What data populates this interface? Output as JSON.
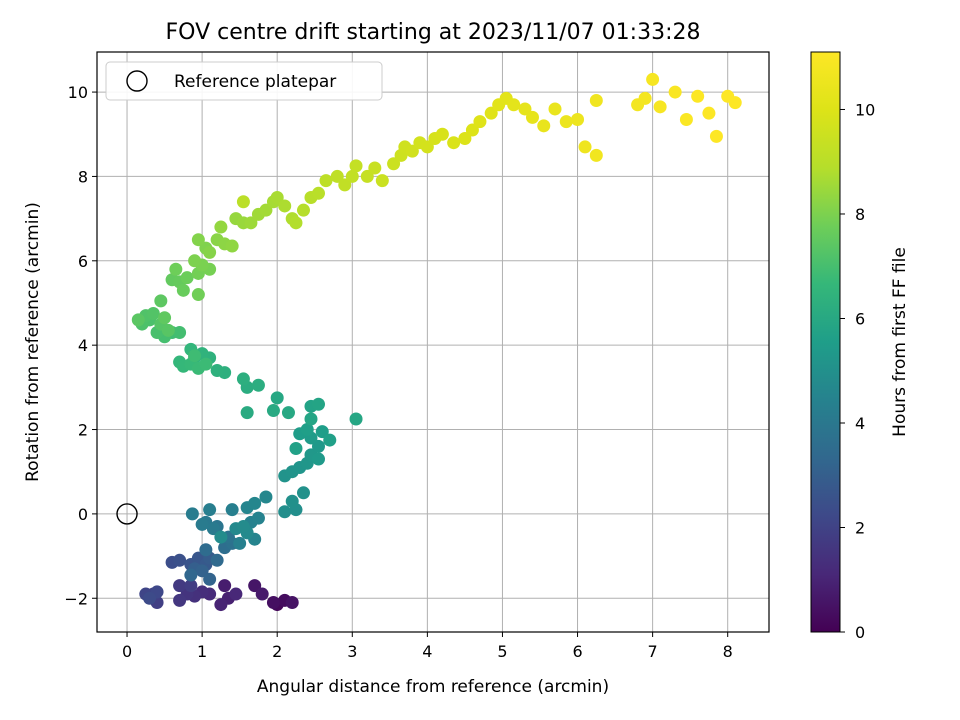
{
  "chart_data": {
    "type": "scatter",
    "title": "FOV centre drift starting at 2023/11/07 01:33:28",
    "xlabel": "Angular distance from reference (arcmin)",
    "ylabel": "Rotation from reference (arcmin)",
    "xlim": [
      -0.4,
      8.55
    ],
    "ylim": [
      -2.8,
      10.95
    ],
    "xticks": [
      0,
      1,
      2,
      3,
      4,
      5,
      6,
      7,
      8
    ],
    "yticks": [
      -2,
      0,
      2,
      4,
      6,
      8,
      10
    ],
    "grid": true,
    "legend": {
      "position": "top-left",
      "label": "Reference platepar"
    },
    "reference_point": {
      "x": 0,
      "y": 0
    },
    "colorbar": {
      "label": "Hours from first FF file",
      "range": [
        0,
        11.1
      ],
      "ticks": [
        0,
        2,
        4,
        6,
        8,
        10
      ],
      "colormap": "viridis"
    },
    "series": [
      {
        "points": [
          [
            2.0,
            -2.15,
            0.2
          ],
          [
            2.1,
            -2.05,
            0.3
          ],
          [
            1.95,
            -2.1,
            0.4
          ],
          [
            2.2,
            -2.1,
            0.5
          ],
          [
            1.7,
            -1.7,
            0.6
          ],
          [
            1.8,
            -1.9,
            0.7
          ],
          [
            1.3,
            -1.7,
            0.8
          ],
          [
            1.35,
            -2.0,
            0.9
          ],
          [
            1.25,
            -2.15,
            1.0
          ],
          [
            1.45,
            -1.9,
            1.1
          ],
          [
            1.1,
            -1.9,
            1.2
          ],
          [
            1.0,
            -1.85,
            1.3
          ],
          [
            0.9,
            -1.95,
            1.4
          ],
          [
            0.8,
            -1.9,
            1.5
          ],
          [
            0.7,
            -2.05,
            1.6
          ],
          [
            0.7,
            -1.7,
            1.7
          ],
          [
            0.85,
            -1.7,
            1.8
          ],
          [
            0.4,
            -2.1,
            1.9
          ],
          [
            0.35,
            -1.9,
            2.0
          ],
          [
            0.25,
            -1.9,
            2.1
          ],
          [
            0.4,
            -1.85,
            2.2
          ],
          [
            0.3,
            -2.0,
            2.3
          ],
          [
            0.6,
            -1.15,
            2.4
          ],
          [
            0.7,
            -1.1,
            2.5
          ],
          [
            0.85,
            -1.2,
            2.6
          ],
          [
            0.95,
            -1.05,
            2.7
          ],
          [
            1.05,
            -1.2,
            2.8
          ],
          [
            1.1,
            -1.05,
            2.9
          ],
          [
            0.9,
            -1.3,
            3.0
          ],
          [
            1.0,
            -1.35,
            3.1
          ],
          [
            1.1,
            -1.55,
            3.2
          ],
          [
            0.85,
            -1.45,
            3.3
          ],
          [
            1.2,
            -1.1,
            3.4
          ],
          [
            1.05,
            -0.85,
            3.5
          ],
          [
            1.3,
            -0.8,
            3.6
          ],
          [
            1.4,
            -0.7,
            3.7
          ],
          [
            1.35,
            -0.55,
            3.8
          ],
          [
            1.2,
            -0.3,
            3.9
          ],
          [
            1.05,
            -0.2,
            4.0
          ],
          [
            1.15,
            -0.35,
            4.1
          ],
          [
            1.0,
            -0.25,
            4.15
          ],
          [
            0.87,
            0.0,
            4.2
          ],
          [
            1.1,
            0.1,
            4.25
          ],
          [
            1.4,
            0.1,
            4.3
          ],
          [
            1.5,
            -0.7,
            4.35
          ],
          [
            1.65,
            -0.2,
            4.4
          ],
          [
            1.75,
            -0.1,
            4.45
          ],
          [
            1.7,
            -0.6,
            4.5
          ],
          [
            1.6,
            0.15,
            4.55
          ],
          [
            1.7,
            0.25,
            4.6
          ],
          [
            1.85,
            0.4,
            4.65
          ],
          [
            1.45,
            -0.35,
            4.7
          ],
          [
            1.6,
            -0.45,
            4.75
          ],
          [
            1.55,
            -0.3,
            4.8
          ],
          [
            1.25,
            -0.55,
            4.85
          ],
          [
            2.1,
            0.05,
            4.9
          ],
          [
            2.25,
            0.1,
            4.95
          ],
          [
            2.2,
            0.3,
            5.0
          ],
          [
            2.35,
            0.5,
            5.05
          ],
          [
            2.1,
            0.9,
            5.1
          ],
          [
            2.2,
            1.0,
            5.15
          ],
          [
            2.3,
            1.1,
            5.2
          ],
          [
            2.4,
            1.2,
            5.25
          ],
          [
            2.45,
            1.4,
            5.3
          ],
          [
            2.55,
            1.6,
            5.35
          ],
          [
            2.55,
            1.3,
            5.4
          ],
          [
            2.45,
            1.8,
            5.45
          ],
          [
            2.3,
            1.9,
            5.5
          ],
          [
            2.6,
            1.95,
            5.55
          ],
          [
            2.4,
            2.0,
            5.6
          ],
          [
            2.7,
            1.75,
            5.65
          ],
          [
            2.25,
            1.55,
            5.7
          ],
          [
            2.45,
            2.55,
            5.75
          ],
          [
            2.55,
            2.6,
            5.8
          ],
          [
            2.45,
            2.25,
            5.85
          ],
          [
            3.05,
            2.25,
            5.9
          ],
          [
            2.0,
            2.75,
            5.95
          ],
          [
            2.15,
            2.4,
            6.0
          ],
          [
            1.95,
            2.45,
            6.05
          ],
          [
            1.6,
            2.4,
            6.1
          ],
          [
            1.6,
            3.0,
            6.15
          ],
          [
            1.75,
            3.05,
            6.2
          ],
          [
            1.55,
            3.2,
            6.25
          ],
          [
            1.3,
            3.35,
            6.3
          ],
          [
            1.2,
            3.4,
            6.35
          ],
          [
            1.1,
            3.7,
            6.4
          ],
          [
            1.0,
            3.8,
            6.45
          ],
          [
            0.9,
            3.7,
            6.5
          ],
          [
            0.85,
            3.9,
            6.55
          ],
          [
            0.7,
            3.6,
            6.6
          ],
          [
            0.75,
            3.5,
            6.65
          ],
          [
            0.85,
            3.55,
            6.7
          ],
          [
            0.95,
            3.45,
            6.75
          ],
          [
            1.05,
            3.55,
            6.8
          ],
          [
            0.9,
            3.75,
            6.85
          ],
          [
            0.6,
            4.3,
            6.9
          ],
          [
            0.7,
            4.3,
            6.95
          ],
          [
            0.5,
            4.2,
            7.0
          ],
          [
            0.4,
            4.3,
            7.05
          ],
          [
            0.3,
            4.6,
            7.1
          ],
          [
            0.2,
            4.5,
            7.15
          ],
          [
            0.25,
            4.7,
            7.2
          ],
          [
            0.35,
            4.75,
            7.25
          ],
          [
            0.45,
            4.5,
            7.3
          ],
          [
            0.55,
            4.35,
            7.35
          ],
          [
            0.15,
            4.6,
            7.4
          ],
          [
            0.45,
            5.05,
            7.45
          ],
          [
            0.5,
            4.65,
            7.5
          ],
          [
            0.6,
            5.55,
            7.55
          ],
          [
            0.7,
            5.5,
            7.6
          ],
          [
            0.75,
            5.3,
            7.65
          ],
          [
            0.8,
            5.6,
            7.7
          ],
          [
            0.65,
            5.8,
            7.75
          ],
          [
            0.95,
            5.2,
            7.8
          ],
          [
            0.95,
            5.7,
            7.85
          ],
          [
            1.1,
            5.8,
            7.9
          ],
          [
            1.0,
            5.9,
            7.95
          ],
          [
            0.9,
            6.0,
            8.0
          ],
          [
            1.05,
            6.3,
            8.05
          ],
          [
            0.95,
            6.5,
            8.1
          ],
          [
            1.1,
            6.2,
            8.15
          ],
          [
            1.2,
            6.5,
            8.2
          ],
          [
            1.3,
            6.4,
            8.25
          ],
          [
            1.4,
            6.35,
            8.3
          ],
          [
            1.25,
            6.8,
            8.35
          ],
          [
            1.45,
            7.0,
            8.4
          ],
          [
            1.55,
            6.9,
            8.45
          ],
          [
            1.65,
            6.9,
            8.5
          ],
          [
            1.75,
            7.1,
            8.55
          ],
          [
            1.85,
            7.2,
            8.6
          ],
          [
            1.95,
            7.4,
            8.65
          ],
          [
            2.0,
            7.5,
            8.7
          ],
          [
            2.1,
            7.3,
            8.75
          ],
          [
            2.2,
            7.0,
            8.8
          ],
          [
            2.25,
            6.9,
            8.85
          ],
          [
            2.35,
            7.2,
            8.9
          ],
          [
            2.45,
            7.5,
            8.95
          ],
          [
            2.55,
            7.6,
            9.0
          ],
          [
            1.55,
            7.4,
            9.05
          ],
          [
            2.65,
            7.9,
            9.1
          ],
          [
            2.8,
            8.0,
            9.15
          ],
          [
            2.9,
            7.8,
            9.2
          ],
          [
            3.0,
            8.0,
            9.25
          ],
          [
            3.05,
            8.25,
            9.3
          ],
          [
            3.2,
            8.0,
            9.35
          ],
          [
            3.3,
            8.2,
            9.4
          ],
          [
            3.4,
            7.9,
            9.45
          ],
          [
            3.55,
            8.3,
            9.5
          ],
          [
            3.65,
            8.5,
            9.55
          ],
          [
            3.7,
            8.7,
            9.6
          ],
          [
            3.8,
            8.6,
            9.65
          ],
          [
            3.9,
            8.8,
            9.7
          ],
          [
            4.0,
            8.7,
            9.75
          ],
          [
            4.1,
            8.9,
            9.8
          ],
          [
            4.2,
            9.0,
            9.85
          ],
          [
            4.35,
            8.8,
            9.9
          ],
          [
            4.5,
            8.9,
            9.95
          ],
          [
            4.6,
            9.1,
            10.0
          ],
          [
            4.7,
            9.3,
            10.05
          ],
          [
            4.85,
            9.5,
            10.1
          ],
          [
            4.95,
            9.7,
            10.15
          ],
          [
            5.05,
            9.85,
            10.2
          ],
          [
            5.15,
            9.7,
            10.25
          ],
          [
            5.3,
            9.6,
            10.3
          ],
          [
            5.4,
            9.4,
            10.35
          ],
          [
            5.55,
            9.2,
            10.4
          ],
          [
            5.7,
            9.6,
            10.45
          ],
          [
            5.85,
            9.3,
            10.5
          ],
          [
            6.0,
            9.35,
            10.55
          ],
          [
            6.1,
            8.7,
            10.6
          ],
          [
            6.25,
            9.8,
            10.65
          ],
          [
            6.25,
            8.5,
            10.7
          ],
          [
            6.8,
            9.7,
            10.75
          ],
          [
            6.9,
            9.85,
            10.8
          ],
          [
            7.0,
            10.3,
            10.85
          ],
          [
            7.1,
            9.65,
            10.9
          ],
          [
            7.3,
            10.0,
            10.95
          ],
          [
            7.45,
            9.35,
            11.0
          ],
          [
            7.6,
            9.9,
            11.05
          ],
          [
            7.75,
            9.5,
            11.08
          ],
          [
            7.85,
            8.95,
            11.1
          ],
          [
            8.0,
            9.9,
            11.1
          ],
          [
            8.1,
            9.75,
            11.1
          ]
        ]
      }
    ]
  }
}
